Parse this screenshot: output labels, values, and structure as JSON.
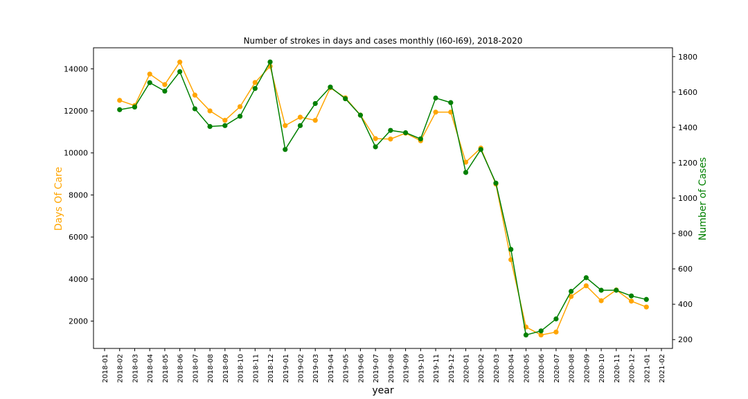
{
  "chart_data": {
    "type": "line",
    "title": "Number of strokes in days and cases monthly (I60-I69), 2018-2020",
    "xlabel": "year",
    "ylabel_left": "Days Of Care",
    "ylabel_right": "Number of Cases",
    "categories": [
      "2018-01",
      "2018-02",
      "2018-03",
      "2018-04",
      "2018-05",
      "2018-06",
      "2018-07",
      "2018-08",
      "2018-09",
      "2018-10",
      "2018-11",
      "2018-12",
      "2019-01",
      "2019-02",
      "2019-03",
      "2019-04",
      "2019-05",
      "2019-06",
      "2019-07",
      "2019-08",
      "2019-09",
      "2019-10",
      "2019-11",
      "2019-12",
      "2020-01",
      "2020-02",
      "2020-03",
      "2020-04",
      "2020-05",
      "2020-06",
      "2020-07",
      "2020-08",
      "2020-09",
      "2020-10",
      "2020-11",
      "2020-12",
      "2021-01",
      "2021-02"
    ],
    "ylim_left": [
      700,
      15000
    ],
    "ylim_right": [
      150,
      1850
    ],
    "yticks_left": [
      2000,
      4000,
      6000,
      8000,
      10000,
      12000,
      14000
    ],
    "yticks_right": [
      200,
      400,
      600,
      800,
      1000,
      1200,
      1400,
      1600,
      1800
    ],
    "series": [
      {
        "axis": "left",
        "color": "#FFA500",
        "x": [
          "2018-02",
          "2018-03",
          "2018-04",
          "2018-05",
          "2018-06",
          "2018-07",
          "2018-08",
          "2018-09",
          "2018-10",
          "2018-11",
          "2018-12",
          "2019-01",
          "2019-02",
          "2019-03",
          "2019-04",
          "2019-05",
          "2019-06",
          "2019-07",
          "2019-08",
          "2019-09",
          "2019-10",
          "2019-11",
          "2019-12",
          "2020-01",
          "2020-02",
          "2020-03",
          "2020-04",
          "2020-05",
          "2020-06",
          "2020-07",
          "2020-08",
          "2020-09",
          "2020-10",
          "2020-11",
          "2020-12",
          "2021-01"
        ],
        "values": [
          12500,
          12250,
          13750,
          13250,
          14320,
          12750,
          12000,
          11550,
          12200,
          13350,
          14120,
          11300,
          11700,
          11550,
          13100,
          12620,
          11800,
          10680,
          10660,
          10940,
          10580,
          11940,
          11940,
          9560,
          10230,
          8520,
          4920,
          1720,
          1340,
          1480,
          3170,
          3680,
          2970,
          3480,
          2950,
          2670
        ]
      },
      {
        "axis": "right",
        "color": "#008000",
        "x": [
          "2018-02",
          "2018-03",
          "2018-04",
          "2018-05",
          "2018-06",
          "2018-07",
          "2018-08",
          "2018-09",
          "2018-10",
          "2018-11",
          "2018-12",
          "2019-01",
          "2019-02",
          "2019-03",
          "2019-04",
          "2019-05",
          "2019-06",
          "2019-07",
          "2019-08",
          "2019-09",
          "2019-10",
          "2019-11",
          "2019-12",
          "2020-01",
          "2020-02",
          "2020-03",
          "2020-04",
          "2020-05",
          "2020-06",
          "2020-07",
          "2020-08",
          "2020-09",
          "2020-10",
          "2020-11",
          "2020-12",
          "2021-01"
        ],
        "values": [
          1500,
          1515,
          1653,
          1605,
          1715,
          1505,
          1405,
          1410,
          1463,
          1620,
          1770,
          1275,
          1410,
          1535,
          1628,
          1562,
          1469,
          1290,
          1383,
          1370,
          1335,
          1566,
          1540,
          1145,
          1275,
          1085,
          710,
          226,
          249,
          317,
          473,
          550,
          479,
          479,
          447,
          427
        ]
      }
    ],
    "grid": false,
    "colors": {
      "left_axis_label": "#FFA500",
      "right_axis_label": "#008000"
    }
  }
}
